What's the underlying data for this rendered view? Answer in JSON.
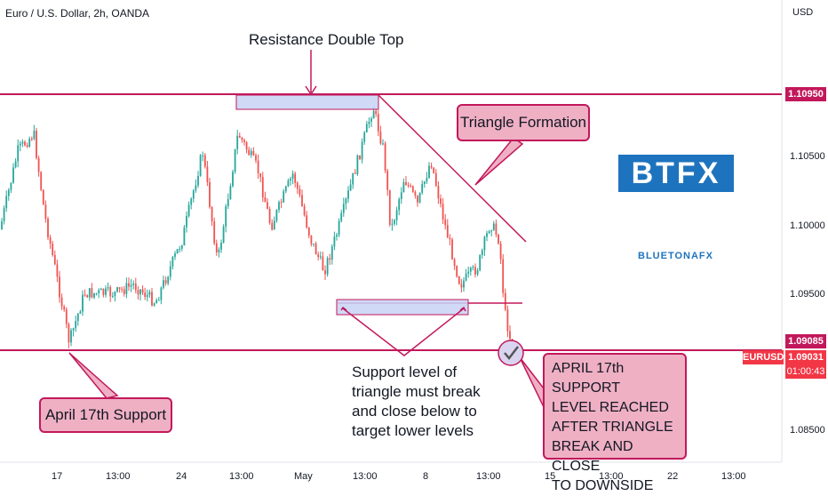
{
  "header": {
    "symbol": "Euro / U.S. Dollar, 2h, OANDA",
    "currency": "USD"
  },
  "price_axis": {
    "ticks": [
      {
        "value": 1.105,
        "label": "1.10500"
      },
      {
        "value": 1.1,
        "label": "1.10000"
      },
      {
        "value": 1.095,
        "label": "1.09500"
      },
      {
        "value": 1.085,
        "label": "1.08500"
      }
    ],
    "resistance_tag": {
      "label": "1.10950",
      "color": "#c2185b"
    },
    "support_tag": {
      "label": "1.09085",
      "color": "#c2185b"
    },
    "symbol_tag": {
      "label": "EURUSD",
      "color": "#f23645"
    },
    "last_price_tag": {
      "price": "1.09031",
      "countdown": "01:00:43",
      "color": "#f23645"
    }
  },
  "time_axis": [
    "17",
    "13:00",
    "24",
    "13:00",
    "May",
    "13:00",
    "8",
    "13:00",
    "15",
    "13:00",
    "22",
    "13:00"
  ],
  "annotations": {
    "resistance": "Resistance Double Top",
    "triangle": "Triangle Formation",
    "support_left": "April 17th Support",
    "support_break": [
      "Support level of",
      "triangle must break",
      "and close below to",
      "target lower levels"
    ],
    "target_reached": [
      "APRIL 17th SUPPORT",
      "LEVEL REACHED",
      "AFTER TRIANGLE",
      "BREAK AND CLOSE",
      "TO DOWNSIDE"
    ]
  },
  "branding": {
    "logo": "BTFX",
    "watermark": "BLUETONAFX"
  },
  "colors": {
    "up": "#26a69a",
    "down": "#ef5350",
    "levels": "#c2185b",
    "box_fill": "#c8d2f5",
    "box_border": "#7b6fc9"
  }
}
